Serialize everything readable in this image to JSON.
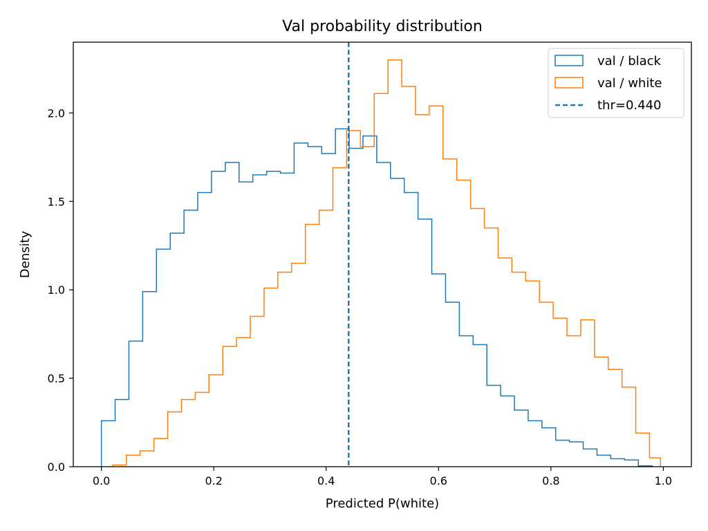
{
  "chart_data": {
    "type": "histogram",
    "title": "Val probability distribution",
    "xlabel": "Predicted P(white)",
    "ylabel": "Density",
    "xlim": [
      -0.05,
      1.05
    ],
    "ylim": [
      0,
      2.4
    ],
    "xticks": [
      0.0,
      0.2,
      0.4,
      0.6,
      0.8,
      1.0
    ],
    "xtick_labels": [
      "0.0",
      "0.2",
      "0.4",
      "0.6",
      "0.8",
      "1.0"
    ],
    "yticks": [
      0.0,
      0.5,
      1.0,
      1.5,
      2.0
    ],
    "ytick_labels": [
      "0.0",
      "0.5",
      "1.0",
      "1.5",
      "2.0"
    ],
    "grid": false,
    "legend_position": "top-right",
    "series": [
      {
        "name": "val / black",
        "color": "#1f77b4",
        "bin_edges": [
          0.0,
          0.0245,
          0.049,
          0.0735,
          0.098,
          0.1225,
          0.147,
          0.1715,
          0.196,
          0.2205,
          0.245,
          0.2695,
          0.294,
          0.3185,
          0.343,
          0.3675,
          0.392,
          0.4165,
          0.441,
          0.4655,
          0.49,
          0.5145,
          0.539,
          0.5635,
          0.588,
          0.6125,
          0.637,
          0.6615,
          0.686,
          0.7105,
          0.735,
          0.7595,
          0.784,
          0.8085,
          0.833,
          0.8575,
          0.882,
          0.9065,
          0.931,
          0.9555,
          0.98
        ],
        "densities": [
          0.26,
          0.38,
          0.71,
          0.99,
          1.23,
          1.32,
          1.45,
          1.55,
          1.67,
          1.72,
          1.61,
          1.65,
          1.67,
          1.66,
          1.83,
          1.81,
          1.77,
          1.91,
          1.8,
          1.87,
          1.72,
          1.63,
          1.55,
          1.4,
          1.09,
          0.93,
          0.74,
          0.69,
          0.46,
          0.4,
          0.32,
          0.26,
          0.22,
          0.15,
          0.14,
          0.1,
          0.065,
          0.045,
          0.038,
          0.005
        ]
      },
      {
        "name": "val / white",
        "color": "#ff7f0e",
        "bin_edges": [
          0.02,
          0.0445,
          0.069,
          0.0935,
          0.118,
          0.1425,
          0.167,
          0.1915,
          0.216,
          0.2405,
          0.265,
          0.2895,
          0.314,
          0.3385,
          0.363,
          0.3875,
          0.412,
          0.4365,
          0.461,
          0.4855,
          0.51,
          0.5345,
          0.559,
          0.5835,
          0.608,
          0.6325,
          0.657,
          0.6815,
          0.706,
          0.7305,
          0.755,
          0.7795,
          0.804,
          0.8285,
          0.853,
          0.8775,
          0.902,
          0.9265,
          0.951,
          0.9755,
          0.995
        ],
        "densities": [
          0.01,
          0.065,
          0.09,
          0.16,
          0.31,
          0.38,
          0.42,
          0.52,
          0.68,
          0.73,
          0.85,
          1.01,
          1.1,
          1.15,
          1.37,
          1.45,
          1.69,
          1.9,
          1.81,
          2.11,
          2.3,
          2.15,
          1.99,
          2.04,
          1.74,
          1.62,
          1.46,
          1.35,
          1.18,
          1.1,
          1.05,
          0.93,
          0.84,
          0.74,
          0.83,
          0.62,
          0.55,
          0.45,
          0.19,
          0.05
        ]
      }
    ],
    "threshold": {
      "name": "thr=0.440",
      "value": 0.44,
      "color": "#1f77b4",
      "style": "dashed"
    }
  }
}
